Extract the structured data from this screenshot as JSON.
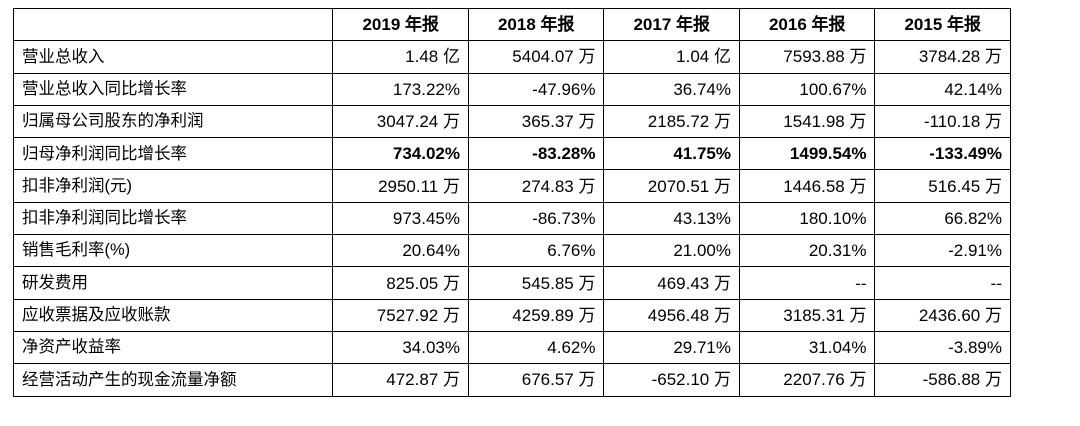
{
  "table": {
    "corner": "",
    "headers": [
      "2019 年报",
      "2018 年报",
      "2017 年报",
      "2016 年报",
      "2015 年报"
    ],
    "rows": [
      {
        "label": "营业总收入",
        "bold": false,
        "values": [
          "1.48 亿",
          "5404.07 万",
          "1.04 亿",
          "7593.88 万",
          "3784.28 万"
        ]
      },
      {
        "label": "营业总收入同比增长率",
        "bold": false,
        "values": [
          "173.22%",
          "-47.96%",
          "36.74%",
          "100.67%",
          "42.14%"
        ]
      },
      {
        "label": "归属母公司股东的净利润",
        "bold": false,
        "values": [
          "3047.24 万",
          "365.37 万",
          "2185.72 万",
          "1541.98 万",
          "-110.18 万"
        ]
      },
      {
        "label": "归母净利润同比增长率",
        "bold": true,
        "values": [
          "734.02%",
          "-83.28%",
          "41.75%",
          "1499.54%",
          "-133.49%"
        ]
      },
      {
        "label": "扣非净利润(元)",
        "bold": false,
        "values": [
          "2950.11 万",
          "274.83 万",
          "2070.51 万",
          "1446.58 万",
          "516.45 万"
        ]
      },
      {
        "label": "扣非净利润同比增长率",
        "bold": false,
        "values": [
          "973.45%",
          "-86.73%",
          "43.13%",
          "180.10%",
          "66.82%"
        ]
      },
      {
        "label": "销售毛利率(%)",
        "bold": false,
        "values": [
          "20.64%",
          "6.76%",
          "21.00%",
          "20.31%",
          "-2.91%"
        ]
      },
      {
        "label": "研发费用",
        "bold": false,
        "values": [
          "825.05 万",
          "545.85 万",
          "469.43 万",
          "--",
          "--"
        ]
      },
      {
        "label": "应收票据及应收账款",
        "bold": false,
        "values": [
          "7527.92 万",
          "4259.89 万",
          "4956.48 万",
          "3185.31 万",
          "2436.60 万"
        ]
      },
      {
        "label": "净资产收益率",
        "bold": false,
        "values": [
          "34.03%",
          "4.62%",
          "29.71%",
          "31.04%",
          "-3.89%"
        ]
      },
      {
        "label": "经营活动产生的现金流量净额",
        "bold": false,
        "values": [
          "472.87 万",
          "676.57 万",
          "-652.10 万",
          "2207.76 万",
          "-586.88 万"
        ]
      }
    ]
  }
}
